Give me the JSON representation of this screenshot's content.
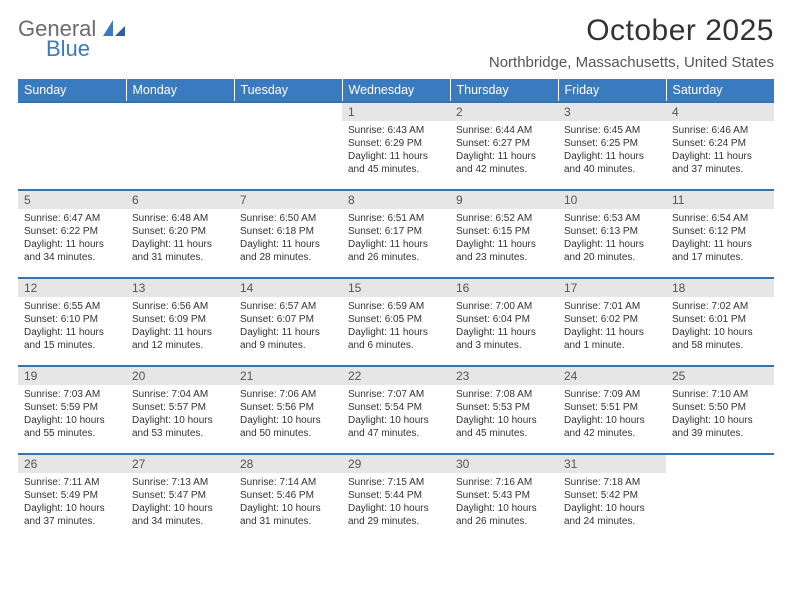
{
  "logo": {
    "line1": "General",
    "line2": "Blue"
  },
  "title": "October 2025",
  "location": "Northbridge, Massachusetts, United States",
  "colors": {
    "header_bg": "#3a7bbf",
    "header_text": "#ffffff",
    "row_divider": "#3773ad",
    "daynum_bg": "#e6e6e6",
    "text": "#333333",
    "logo_gray": "#6b6b6b",
    "logo_blue": "#3a7bbf"
  },
  "weekday_labels": [
    "Sunday",
    "Monday",
    "Tuesday",
    "Wednesday",
    "Thursday",
    "Friday",
    "Saturday"
  ],
  "weeks": [
    [
      {
        "day": "",
        "sunrise": "",
        "sunset": "",
        "daylight1": "",
        "daylight2": "",
        "empty": true
      },
      {
        "day": "",
        "sunrise": "",
        "sunset": "",
        "daylight1": "",
        "daylight2": "",
        "empty": true
      },
      {
        "day": "",
        "sunrise": "",
        "sunset": "",
        "daylight1": "",
        "daylight2": "",
        "empty": true
      },
      {
        "day": "1",
        "sunrise": "Sunrise: 6:43 AM",
        "sunset": "Sunset: 6:29 PM",
        "daylight1": "Daylight: 11 hours",
        "daylight2": "and 45 minutes."
      },
      {
        "day": "2",
        "sunrise": "Sunrise: 6:44 AM",
        "sunset": "Sunset: 6:27 PM",
        "daylight1": "Daylight: 11 hours",
        "daylight2": "and 42 minutes."
      },
      {
        "day": "3",
        "sunrise": "Sunrise: 6:45 AM",
        "sunset": "Sunset: 6:25 PM",
        "daylight1": "Daylight: 11 hours",
        "daylight2": "and 40 minutes."
      },
      {
        "day": "4",
        "sunrise": "Sunrise: 6:46 AM",
        "sunset": "Sunset: 6:24 PM",
        "daylight1": "Daylight: 11 hours",
        "daylight2": "and 37 minutes."
      }
    ],
    [
      {
        "day": "5",
        "sunrise": "Sunrise: 6:47 AM",
        "sunset": "Sunset: 6:22 PM",
        "daylight1": "Daylight: 11 hours",
        "daylight2": "and 34 minutes."
      },
      {
        "day": "6",
        "sunrise": "Sunrise: 6:48 AM",
        "sunset": "Sunset: 6:20 PM",
        "daylight1": "Daylight: 11 hours",
        "daylight2": "and 31 minutes."
      },
      {
        "day": "7",
        "sunrise": "Sunrise: 6:50 AM",
        "sunset": "Sunset: 6:18 PM",
        "daylight1": "Daylight: 11 hours",
        "daylight2": "and 28 minutes."
      },
      {
        "day": "8",
        "sunrise": "Sunrise: 6:51 AM",
        "sunset": "Sunset: 6:17 PM",
        "daylight1": "Daylight: 11 hours",
        "daylight2": "and 26 minutes."
      },
      {
        "day": "9",
        "sunrise": "Sunrise: 6:52 AM",
        "sunset": "Sunset: 6:15 PM",
        "daylight1": "Daylight: 11 hours",
        "daylight2": "and 23 minutes."
      },
      {
        "day": "10",
        "sunrise": "Sunrise: 6:53 AM",
        "sunset": "Sunset: 6:13 PM",
        "daylight1": "Daylight: 11 hours",
        "daylight2": "and 20 minutes."
      },
      {
        "day": "11",
        "sunrise": "Sunrise: 6:54 AM",
        "sunset": "Sunset: 6:12 PM",
        "daylight1": "Daylight: 11 hours",
        "daylight2": "and 17 minutes."
      }
    ],
    [
      {
        "day": "12",
        "sunrise": "Sunrise: 6:55 AM",
        "sunset": "Sunset: 6:10 PM",
        "daylight1": "Daylight: 11 hours",
        "daylight2": "and 15 minutes."
      },
      {
        "day": "13",
        "sunrise": "Sunrise: 6:56 AM",
        "sunset": "Sunset: 6:09 PM",
        "daylight1": "Daylight: 11 hours",
        "daylight2": "and 12 minutes."
      },
      {
        "day": "14",
        "sunrise": "Sunrise: 6:57 AM",
        "sunset": "Sunset: 6:07 PM",
        "daylight1": "Daylight: 11 hours",
        "daylight2": "and 9 minutes."
      },
      {
        "day": "15",
        "sunrise": "Sunrise: 6:59 AM",
        "sunset": "Sunset: 6:05 PM",
        "daylight1": "Daylight: 11 hours",
        "daylight2": "and 6 minutes."
      },
      {
        "day": "16",
        "sunrise": "Sunrise: 7:00 AM",
        "sunset": "Sunset: 6:04 PM",
        "daylight1": "Daylight: 11 hours",
        "daylight2": "and 3 minutes."
      },
      {
        "day": "17",
        "sunrise": "Sunrise: 7:01 AM",
        "sunset": "Sunset: 6:02 PM",
        "daylight1": "Daylight: 11 hours",
        "daylight2": "and 1 minute."
      },
      {
        "day": "18",
        "sunrise": "Sunrise: 7:02 AM",
        "sunset": "Sunset: 6:01 PM",
        "daylight1": "Daylight: 10 hours",
        "daylight2": "and 58 minutes."
      }
    ],
    [
      {
        "day": "19",
        "sunrise": "Sunrise: 7:03 AM",
        "sunset": "Sunset: 5:59 PM",
        "daylight1": "Daylight: 10 hours",
        "daylight2": "and 55 minutes."
      },
      {
        "day": "20",
        "sunrise": "Sunrise: 7:04 AM",
        "sunset": "Sunset: 5:57 PM",
        "daylight1": "Daylight: 10 hours",
        "daylight2": "and 53 minutes."
      },
      {
        "day": "21",
        "sunrise": "Sunrise: 7:06 AM",
        "sunset": "Sunset: 5:56 PM",
        "daylight1": "Daylight: 10 hours",
        "daylight2": "and 50 minutes."
      },
      {
        "day": "22",
        "sunrise": "Sunrise: 7:07 AM",
        "sunset": "Sunset: 5:54 PM",
        "daylight1": "Daylight: 10 hours",
        "daylight2": "and 47 minutes."
      },
      {
        "day": "23",
        "sunrise": "Sunrise: 7:08 AM",
        "sunset": "Sunset: 5:53 PM",
        "daylight1": "Daylight: 10 hours",
        "daylight2": "and 45 minutes."
      },
      {
        "day": "24",
        "sunrise": "Sunrise: 7:09 AM",
        "sunset": "Sunset: 5:51 PM",
        "daylight1": "Daylight: 10 hours",
        "daylight2": "and 42 minutes."
      },
      {
        "day": "25",
        "sunrise": "Sunrise: 7:10 AM",
        "sunset": "Sunset: 5:50 PM",
        "daylight1": "Daylight: 10 hours",
        "daylight2": "and 39 minutes."
      }
    ],
    [
      {
        "day": "26",
        "sunrise": "Sunrise: 7:11 AM",
        "sunset": "Sunset: 5:49 PM",
        "daylight1": "Daylight: 10 hours",
        "daylight2": "and 37 minutes."
      },
      {
        "day": "27",
        "sunrise": "Sunrise: 7:13 AM",
        "sunset": "Sunset: 5:47 PM",
        "daylight1": "Daylight: 10 hours",
        "daylight2": "and 34 minutes."
      },
      {
        "day": "28",
        "sunrise": "Sunrise: 7:14 AM",
        "sunset": "Sunset: 5:46 PM",
        "daylight1": "Daylight: 10 hours",
        "daylight2": "and 31 minutes."
      },
      {
        "day": "29",
        "sunrise": "Sunrise: 7:15 AM",
        "sunset": "Sunset: 5:44 PM",
        "daylight1": "Daylight: 10 hours",
        "daylight2": "and 29 minutes."
      },
      {
        "day": "30",
        "sunrise": "Sunrise: 7:16 AM",
        "sunset": "Sunset: 5:43 PM",
        "daylight1": "Daylight: 10 hours",
        "daylight2": "and 26 minutes."
      },
      {
        "day": "31",
        "sunrise": "Sunrise: 7:18 AM",
        "sunset": "Sunset: 5:42 PM",
        "daylight1": "Daylight: 10 hours",
        "daylight2": "and 24 minutes."
      },
      {
        "day": "",
        "sunrise": "",
        "sunset": "",
        "daylight1": "",
        "daylight2": "",
        "empty": true
      }
    ]
  ]
}
